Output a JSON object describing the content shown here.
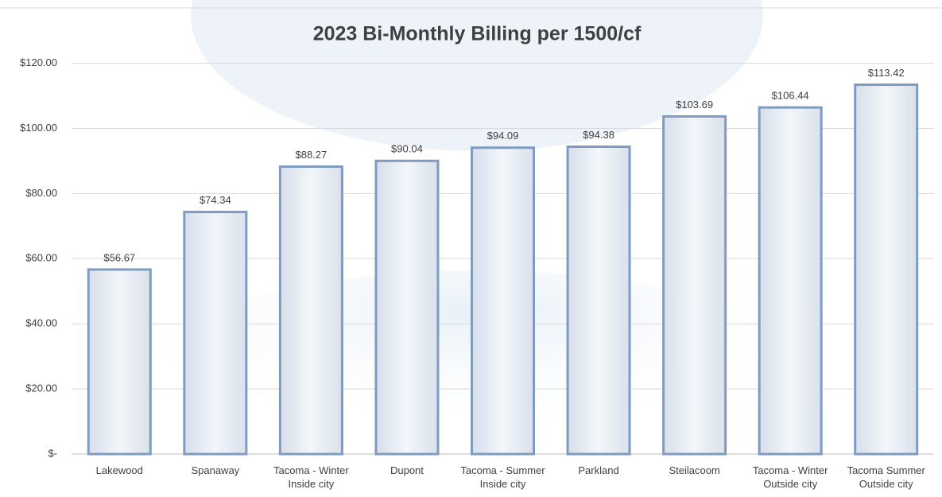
{
  "chart_data": {
    "type": "bar",
    "title": "2023 Bi-Monthly Billing per 1500/cf",
    "categories": [
      "Lakewood",
      "Spanaway",
      "Tacoma - Winter Inside city",
      "Dupont",
      "Tacoma - Summer Inside city",
      "Parkland",
      "Steilacoom",
      "Tacoma - Winter Outside city",
      "Tacoma Summer Outside city"
    ],
    "values": [
      56.67,
      74.34,
      88.27,
      90.04,
      94.09,
      94.38,
      103.69,
      106.44,
      113.42
    ],
    "value_labels": [
      "$56.67",
      "$74.34",
      "$88.27",
      "$90.04",
      "$94.09",
      "$94.38",
      "$103.69",
      "$106.44",
      "$113.42"
    ],
    "color": "#7f9cc0",
    "ylim": [
      0,
      137
    ],
    "yticks": [
      {
        "value": 0,
        "label": "$-"
      },
      {
        "value": 20,
        "label": "$20.00"
      },
      {
        "value": 40,
        "label": "$40.00"
      },
      {
        "value": 60,
        "label": "$60.00"
      },
      {
        "value": 80,
        "label": "$80.00"
      },
      {
        "value": 100,
        "label": "$100.00"
      },
      {
        "value": 120,
        "label": "$120.00"
      }
    ],
    "grid": true
  }
}
